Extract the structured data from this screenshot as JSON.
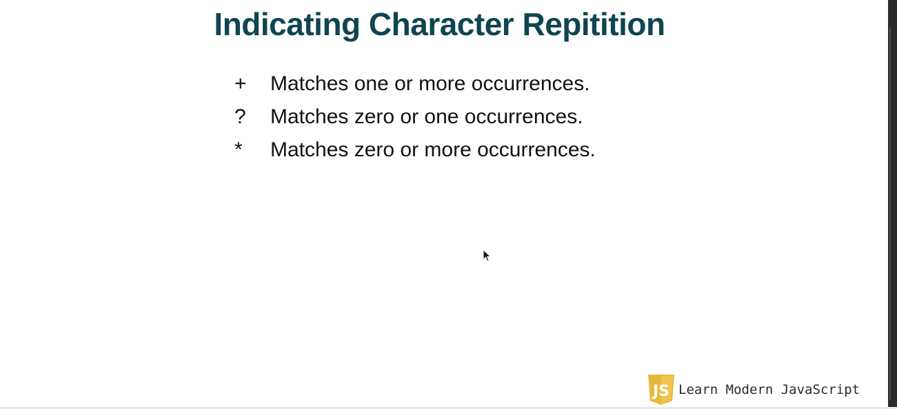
{
  "slide": {
    "title": "Indicating Character Repitition",
    "items": [
      {
        "symbol": "+",
        "text": "Matches one or more occurrences."
      },
      {
        "symbol": "?",
        "text": "Matches zero or one occurrences."
      },
      {
        "symbol": "*",
        "text": "Matches zero or more occurrences."
      }
    ]
  },
  "branding": {
    "text": "Learn Modern JavaScript",
    "logo_text": "JS",
    "logo_icon": "javascript-shield-icon"
  },
  "colors": {
    "title": "#0e4550",
    "body_text": "#111111",
    "logo_gold": "#e8b83a",
    "background": "#ffffff"
  }
}
